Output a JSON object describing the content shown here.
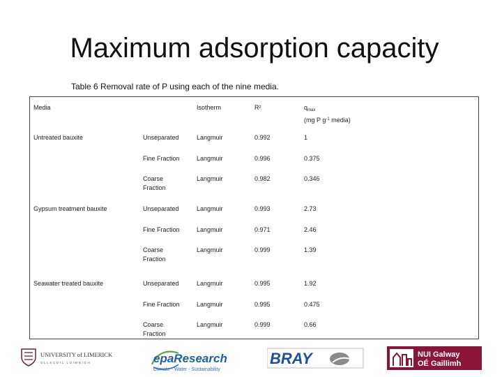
{
  "title": "Maximum adsorption capacity",
  "caption": "Table 6 Removal rate of P using each of the nine media.",
  "table": {
    "headers": {
      "media": "Media",
      "isotherm": "Isotherm",
      "r2": "R²",
      "qmax_q": "q",
      "qmax_sub": "max",
      "qmax_unit_a": "(mg P g",
      "qmax_unit_sup": "-1",
      "qmax_unit_b": " media)"
    },
    "groups": [
      {
        "name": "Untreated bauxite",
        "rows": [
          {
            "fraction": "Unseparated",
            "fraction2": "",
            "isotherm": "Langmuir",
            "r2": "0.992",
            "qmax": "1"
          },
          {
            "fraction": "Fine Fraction",
            "fraction2": "",
            "isotherm": "Langmuir",
            "r2": "0.996",
            "qmax": "0.375"
          },
          {
            "fraction": "Coarse",
            "fraction2": "Fraction",
            "isotherm": "Langmuir",
            "r2": "0.982",
            "qmax": "0.346"
          }
        ]
      },
      {
        "name": "Gypsum treatment bauxite",
        "rows": [
          {
            "fraction": "Unseparated",
            "fraction2": "",
            "isotherm": "Langmuir",
            "r2": "0.993",
            "qmax": "2.73"
          },
          {
            "fraction": "Fine Fraction",
            "fraction2": "",
            "isotherm": "Langmuir",
            "r2": "0.971",
            "qmax": "2.46"
          },
          {
            "fraction": "Coarse",
            "fraction2": "Fraction",
            "isotherm": "Langmuir",
            "r2": "0.999",
            "qmax": "1.39"
          }
        ]
      },
      {
        "name": "Seawater treated bauxite",
        "rows": [
          {
            "fraction": "Unseparated",
            "fraction2": "",
            "isotherm": "Langmuir",
            "r2": "0.995",
            "qmax": "1.92"
          },
          {
            "fraction": "Fine Fraction",
            "fraction2": "",
            "isotherm": "Langmuir",
            "r2": "0.995",
            "qmax": "0.475"
          },
          {
            "fraction": "Coarse",
            "fraction2": "Fraction",
            "isotherm": "Langmuir",
            "r2": "0.999",
            "qmax": "0.66"
          }
        ]
      }
    ]
  },
  "logos": {
    "ul": {
      "name": "UNIVERSITY of LIMERICK",
      "sub": "OLLSCOIL LUIMNIGH"
    },
    "epa": {
      "name": "epaResearch",
      "sub": "Climate - Water - Sustainability"
    },
    "bray": {
      "name": "BRAY"
    },
    "nui": {
      "line1": "NUI Galway",
      "line2": "OÉ Gaillimh"
    }
  }
}
